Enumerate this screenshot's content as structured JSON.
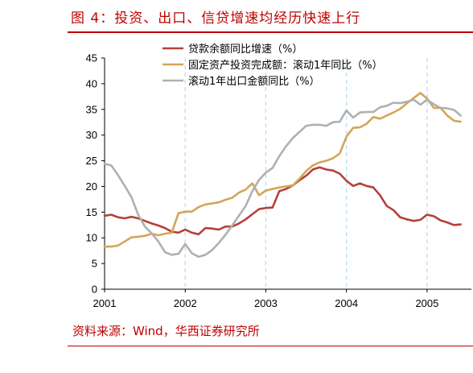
{
  "figure": {
    "title": "图 4：投资、出口、信贷增速均经历快速上行",
    "source": "资料来源：Wind，华西证券研究所"
  },
  "colors": {
    "accent": "#c00000",
    "loan": "#b5413a",
    "fai": "#d4a55a",
    "export": "#b0b0b0",
    "year_marker": "#bfe0f3"
  },
  "chart_data": {
    "type": "line",
    "title": "",
    "xlabel": "",
    "ylabel": "",
    "ylim": [
      0,
      45
    ],
    "yticks": [
      0,
      5,
      10,
      15,
      20,
      25,
      30,
      35,
      40,
      45
    ],
    "xlim": [
      "2001-01",
      "2005-06"
    ],
    "xticks": [
      "2001",
      "2002",
      "2003",
      "2004",
      "2005"
    ],
    "year_markers": [
      "2002",
      "2003",
      "2004",
      "2005"
    ],
    "grid": false,
    "legend_position": "top",
    "series": [
      {
        "name": "贷款余额同比增速（%）",
        "color_key": "loan",
        "x": [
          "2001-01",
          "2001-02",
          "2001-03",
          "2001-04",
          "2001-05",
          "2001-06",
          "2001-07",
          "2001-08",
          "2001-09",
          "2001-10",
          "2001-11",
          "2001-12",
          "2002-01",
          "2002-02",
          "2002-03",
          "2002-04",
          "2002-05",
          "2002-06",
          "2002-07",
          "2002-08",
          "2002-09",
          "2002-10",
          "2002-11",
          "2002-12",
          "2003-01",
          "2003-02",
          "2003-03",
          "2003-04",
          "2003-05",
          "2003-06",
          "2003-07",
          "2003-08",
          "2003-09",
          "2003-10",
          "2003-11",
          "2003-12",
          "2004-01",
          "2004-02",
          "2004-03",
          "2004-04",
          "2004-05",
          "2004-06",
          "2004-07",
          "2004-08",
          "2004-09",
          "2004-10",
          "2004-11",
          "2004-12",
          "2005-01",
          "2005-02",
          "2005-03",
          "2005-04",
          "2005-05",
          "2005-06"
        ],
        "values": [
          14.3,
          14.5,
          14.0,
          13.8,
          14.1,
          13.8,
          13.3,
          12.8,
          12.4,
          11.9,
          11.2,
          11.0,
          11.6,
          11.0,
          10.7,
          11.9,
          11.8,
          11.6,
          12.2,
          12.2,
          12.8,
          13.6,
          14.6,
          15.6,
          15.8,
          15.9,
          19.1,
          19.5,
          20.2,
          21.2,
          22.1,
          23.3,
          23.7,
          23.3,
          23.1,
          22.5,
          21.1,
          20.1,
          20.6,
          20.1,
          19.8,
          18.3,
          16.2,
          15.4,
          14.0,
          13.6,
          13.3,
          13.5,
          14.5,
          14.2,
          13.4,
          13.0,
          12.5,
          12.6
        ]
      },
      {
        "name": "固定资产投资完成额：滚动1年同比（%）",
        "color_key": "fai",
        "x": [
          "2001-01",
          "2001-02",
          "2001-03",
          "2001-04",
          "2001-05",
          "2001-06",
          "2001-07",
          "2001-08",
          "2001-09",
          "2001-10",
          "2001-11",
          "2001-12",
          "2002-01",
          "2002-02",
          "2002-03",
          "2002-04",
          "2002-05",
          "2002-06",
          "2002-07",
          "2002-08",
          "2002-09",
          "2002-10",
          "2002-11",
          "2002-12",
          "2003-01",
          "2003-02",
          "2003-03",
          "2003-04",
          "2003-05",
          "2003-06",
          "2003-07",
          "2003-08",
          "2003-09",
          "2003-10",
          "2003-11",
          "2003-12",
          "2004-01",
          "2004-02",
          "2004-03",
          "2004-04",
          "2004-05",
          "2004-06",
          "2004-07",
          "2004-08",
          "2004-09",
          "2004-10",
          "2004-11",
          "2004-12",
          "2005-01",
          "2005-02",
          "2005-03",
          "2005-04",
          "2005-05",
          "2005-06"
        ],
        "values": [
          8.3,
          8.3,
          8.5,
          9.3,
          10.1,
          10.2,
          10.4,
          10.8,
          10.5,
          10.8,
          11.0,
          14.8,
          15.1,
          15.1,
          16.0,
          16.5,
          16.7,
          16.9,
          17.4,
          17.8,
          18.8,
          19.4,
          20.6,
          18.3,
          19.2,
          19.5,
          19.8,
          20.0,
          20.2,
          21.5,
          23.0,
          24.1,
          24.7,
          25.0,
          25.5,
          26.4,
          29.7,
          31.4,
          31.5,
          32.2,
          33.5,
          33.2,
          33.8,
          34.4,
          35.1,
          36.2,
          37.2,
          38.2,
          37.1,
          35.3,
          35.3,
          33.8,
          32.8,
          32.6
        ]
      },
      {
        "name": "滚动1年出口金额同比（%）",
        "color_key": "export",
        "x": [
          "2001-01",
          "2001-02",
          "2001-03",
          "2001-04",
          "2001-05",
          "2001-06",
          "2001-07",
          "2001-08",
          "2001-09",
          "2001-10",
          "2001-11",
          "2001-12",
          "2002-01",
          "2002-02",
          "2002-03",
          "2002-04",
          "2002-05",
          "2002-06",
          "2002-07",
          "2002-08",
          "2002-09",
          "2002-10",
          "2002-11",
          "2002-12",
          "2003-01",
          "2003-02",
          "2003-03",
          "2003-04",
          "2003-05",
          "2003-06",
          "2003-07",
          "2003-08",
          "2003-09",
          "2003-10",
          "2003-11",
          "2003-12",
          "2004-01",
          "2004-02",
          "2004-03",
          "2004-04",
          "2004-05",
          "2004-06",
          "2004-07",
          "2004-08",
          "2004-09",
          "2004-10",
          "2004-11",
          "2004-12",
          "2005-01",
          "2005-02",
          "2005-03",
          "2005-04",
          "2005-05",
          "2005-06"
        ],
        "values": [
          24.4,
          24.1,
          22.2,
          20.1,
          17.9,
          14.5,
          12.2,
          10.9,
          9.3,
          7.2,
          6.7,
          6.9,
          8.8,
          7.0,
          6.3,
          6.7,
          7.6,
          9.0,
          10.6,
          12.4,
          14.3,
          16.2,
          19.1,
          21.3,
          22.7,
          23.6,
          25.9,
          27.8,
          29.4,
          30.6,
          31.8,
          32.0,
          32.0,
          31.8,
          32.5,
          32.6,
          34.8,
          33.4,
          34.4,
          34.5,
          34.5,
          35.4,
          35.7,
          36.3,
          36.2,
          36.5,
          36.9,
          35.9,
          36.9,
          36.0,
          35.3,
          35.2,
          34.9,
          33.8
        ]
      }
    ]
  }
}
